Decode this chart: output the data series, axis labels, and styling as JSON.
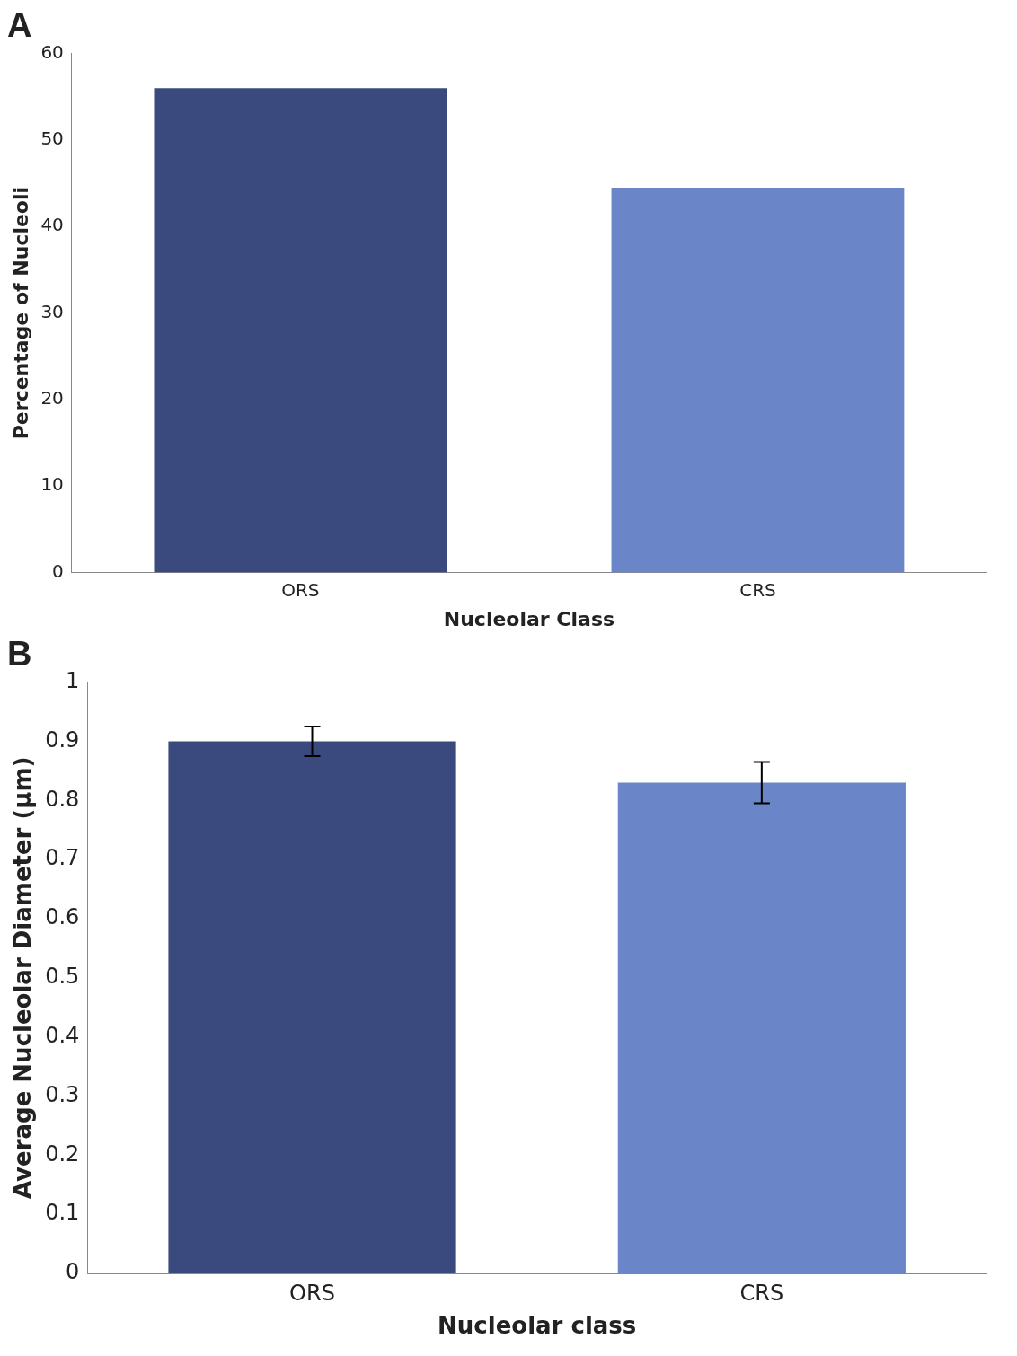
{
  "chart_data": [
    {
      "type": "bar",
      "title": "A",
      "categories": [
        "ORS",
        "CRS"
      ],
      "values": [
        56,
        44.5
      ],
      "colors": [
        "#3b4a7e",
        "#6b86c8"
      ],
      "xlabel": "Nucleolar Class",
      "ylabel": "Percentage of Nucleoli",
      "ylim": [
        0,
        60
      ],
      "yticks": [
        0,
        10,
        20,
        30,
        40,
        50,
        60
      ],
      "grid": false,
      "legend": false
    },
    {
      "type": "bar",
      "title": "B",
      "categories": [
        "ORS",
        "CRS"
      ],
      "values": [
        0.9,
        0.83
      ],
      "errors": [
        0.025,
        0.035
      ],
      "colors": [
        "#3b4a7e",
        "#6b86c8"
      ],
      "xlabel": "Nucleolar class",
      "ylabel": "Average Nucleolar Diameter (µm)",
      "ylim": [
        0,
        1
      ],
      "yticks": [
        0,
        0.1,
        0.2,
        0.3,
        0.4,
        0.5,
        0.6,
        0.7,
        0.8,
        0.9,
        1
      ],
      "grid": false,
      "legend": false
    }
  ]
}
